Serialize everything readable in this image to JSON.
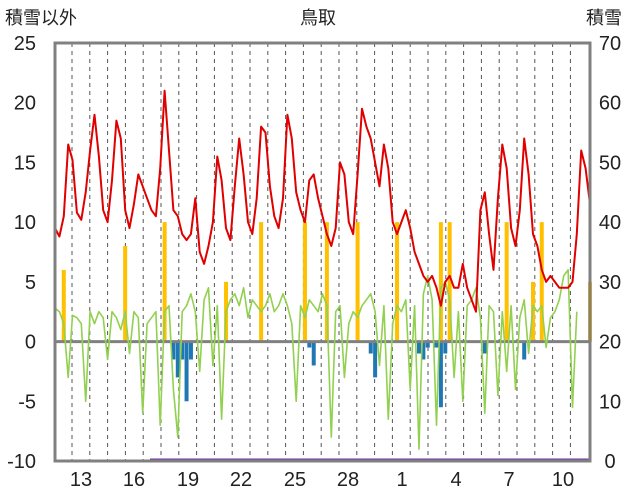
{
  "chart_data": {
    "type": "line",
    "title": "鳥取",
    "left_axis_label": "積雪以外",
    "right_axis_label": "積雪",
    "left_ylim": [
      -10,
      25
    ],
    "left_yticks": [
      "25",
      "20",
      "15",
      "10",
      "5",
      "0",
      "-5",
      "-10"
    ],
    "right_ylim": [
      0,
      70
    ],
    "right_yticks": [
      "70",
      "60",
      "50",
      "40",
      "30",
      "20",
      "10",
      "0"
    ],
    "x_tick_labels": [
      "13",
      "16",
      "19",
      "22",
      "25",
      "28",
      "1",
      "4",
      "7",
      "10"
    ],
    "grid": "vertical dashed, one per day",
    "colors": {
      "temperature": "#e00000",
      "humidity_green": "#92d050",
      "precip_orange": "#ffc000",
      "neg_blue": "#1f77b4",
      "snow_purple": "#7030a0",
      "frame": "#808080"
    },
    "series": [
      {
        "color": "#e00000",
        "values": [
          9.5,
          8.8,
          10.5,
          16.5,
          15.2,
          10.8,
          10.2,
          12.5,
          16.0,
          19.0,
          15.5,
          11.0,
          10.0,
          13.5,
          18.5,
          17.0,
          11.0,
          9.5,
          11.5,
          14.0,
          13.0,
          12.0,
          11.0,
          10.5,
          14.5,
          21.0,
          16.0,
          11.0,
          10.5,
          9.0,
          8.5,
          9.0,
          12.0,
          7.5,
          6.5,
          8.0,
          10.0,
          15.5,
          13.5,
          9.5,
          8.5,
          13.0,
          17.0,
          14.0,
          10.0,
          9.0,
          12.0,
          18.0,
          17.5,
          13.0,
          10.5,
          9.5,
          12.0,
          19.0,
          17.0,
          12.5,
          11.0,
          10.0,
          13.5,
          14.0,
          12.0,
          10.5,
          9.0,
          8.0,
          9.5,
          15.0,
          14.0,
          10.0,
          9.0,
          14.0,
          19.5,
          18.0,
          17.0,
          15.0,
          13.0,
          16.5,
          14.5,
          10.0,
          9.0,
          10.0,
          11.0,
          9.5,
          7.5,
          6.5,
          5.5,
          5.0,
          5.5,
          4.5,
          3.0,
          5.0,
          5.5,
          4.5,
          4.5,
          6.5,
          4.5,
          3.5,
          2.5,
          11.0,
          12.5,
          9.0,
          6.0,
          12.0,
          16.5,
          14.5,
          9.5,
          8.0,
          11.0,
          17.0,
          14.0,
          9.0,
          8.0,
          6.0,
          5.0,
          5.5,
          5.0,
          4.5,
          4.5,
          4.5,
          5.0,
          9.0,
          16.0,
          14.5,
          11.5
        ]
      },
      {
        "color": "#92d050",
        "values": [
          2.8,
          2.5,
          1.5,
          -3.0,
          2.2,
          2.0,
          1.5,
          -5.0,
          2.5,
          1.5,
          2.5,
          2.0,
          -1.5,
          2.5,
          2.0,
          1.0,
          2.5,
          -1.0,
          2.5,
          2.0,
          -6.0,
          1.5,
          2.0,
          2.5,
          -7.0,
          2.5,
          3.0,
          -4.0,
          -8.0,
          2.5,
          3.0,
          4.0,
          2.5,
          -2.5,
          3.5,
          4.5,
          -2.0,
          3.0,
          -6.5,
          2.5,
          3.5,
          4.0,
          3.0,
          4.5,
          2.0,
          3.5,
          3.0,
          2.5,
          3.0,
          4.0,
          2.5,
          3.0,
          4.0,
          3.0,
          1.5,
          -5.0,
          3.0,
          2.0,
          3.5,
          3.0,
          2.5,
          4.0,
          3.0,
          -8.0,
          2.5,
          3.0,
          -3.0,
          1.5,
          2.5,
          2.0,
          3.0,
          3.5,
          4.0,
          2.5,
          -2.0,
          3.0,
          -6.5,
          1.5,
          3.0,
          2.5,
          3.5,
          -4.0,
          3.0,
          -9.0,
          4.0,
          5.5,
          3.5,
          -7.0,
          4.5,
          5.0,
          3.5,
          -3.0,
          2.5,
          -5.0,
          3.0,
          3.5,
          4.5,
          2.0,
          -6.0,
          3.0,
          2.5,
          -4.5,
          2.5,
          -2.5,
          3.0,
          -4.0,
          2.0,
          3.5,
          -1.0,
          3.0,
          2.5,
          3.0,
          -0.5,
          2.0,
          2.5,
          3.5,
          5.5,
          6.0,
          -5.5,
          2.5
        ]
      },
      {
        "color": "#ffc000",
        "type": "bar",
        "values": [
          0,
          0,
          6.0,
          0,
          0,
          0,
          0,
          0,
          0,
          0,
          0,
          0,
          0,
          0,
          0,
          0,
          8.0,
          0,
          0,
          0,
          0,
          0,
          0,
          0,
          0,
          10.0,
          0,
          0,
          0,
          0,
          0,
          0,
          0,
          0,
          0,
          0,
          0,
          0,
          0,
          5.0,
          0,
          0,
          0,
          0,
          0,
          0,
          0,
          10.0,
          0,
          0,
          0,
          0,
          0,
          0,
          0,
          0,
          0,
          10.0,
          0,
          0,
          0,
          0,
          10.0,
          0,
          0,
          0,
          0,
          0,
          0,
          10.0,
          0,
          0,
          0,
          0,
          0,
          0,
          0,
          0,
          10.0,
          0,
          0,
          0,
          0,
          0,
          0,
          0,
          0,
          0,
          10.0,
          0,
          10.0,
          0,
          0,
          0,
          0,
          0,
          0,
          0,
          0,
          0,
          0,
          0,
          0,
          10.0,
          0,
          0,
          0,
          0,
          0,
          5.0,
          0,
          10.0,
          0,
          0,
          0,
          0,
          0,
          0,
          0,
          0,
          0,
          0,
          5.0
        ]
      },
      {
        "color": "#1f77b4",
        "type": "bar",
        "values": [
          0,
          0,
          0,
          0,
          0,
          0,
          0,
          0,
          0,
          0,
          0,
          0,
          0,
          0,
          0,
          0,
          0,
          0,
          0,
          0,
          0,
          0,
          0,
          0,
          0,
          0,
          0,
          -1.5,
          -3.0,
          -1.5,
          -5.0,
          -1.5,
          0,
          0,
          0,
          0,
          0,
          0,
          0,
          0,
          0,
          0,
          0,
          0,
          0,
          0,
          0,
          0,
          0,
          0,
          0,
          0,
          0,
          0,
          0,
          0,
          0,
          0,
          -0.5,
          -2.0,
          0,
          0,
          0,
          0,
          0,
          0,
          0,
          0,
          0,
          0,
          0,
          0,
          -1.0,
          -3.0,
          0,
          0,
          0,
          0,
          0,
          0,
          0,
          0,
          0,
          -1.0,
          -1.5,
          -0.5,
          0,
          -0.5,
          -5.5,
          -1.0,
          0,
          0,
          0,
          0,
          0,
          0,
          0,
          0,
          -1.0,
          0,
          0,
          0,
          0,
          0,
          0,
          0,
          0,
          -1.5,
          0,
          0,
          0,
          0,
          0,
          0,
          0,
          0,
          0,
          0,
          0
        ]
      }
    ]
  }
}
